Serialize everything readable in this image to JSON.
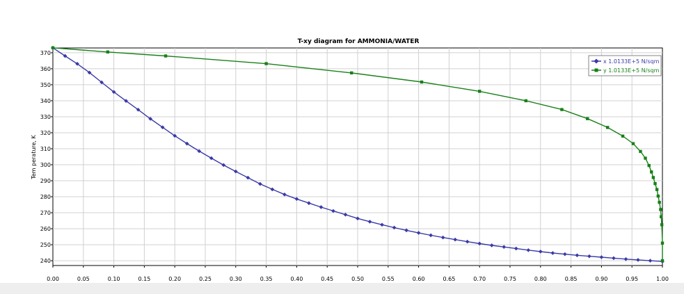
{
  "chart_data": {
    "type": "line",
    "title": "T-xy diagram for AMMONIA/WATER",
    "xlabel": "",
    "ylabel": "Tem perature, K",
    "xlim": [
      0,
      1
    ],
    "ylim": [
      237,
      373
    ],
    "x_ticks": [
      "0.00",
      "0.05",
      "0.10",
      "0.15",
      "0.20",
      "0.25",
      "0.30",
      "0.35",
      "0.40",
      "0.45",
      "0.50",
      "0.55",
      "0.60",
      "0.65",
      "0.70",
      "0.75",
      "0.80",
      "0.85",
      "0.90",
      "0.95",
      "1.00"
    ],
    "y_ticks": [
      "240",
      "250",
      "260",
      "270",
      "280",
      "290",
      "300",
      "310",
      "320",
      "330",
      "340",
      "350",
      "360",
      "370"
    ],
    "grid": true,
    "legend_position": "top-right",
    "series": [
      {
        "name": "x 1.0133E+5 N/sqm",
        "color": "#3a3aa8",
        "marker": "diamond",
        "x": [
          0,
          0.02,
          0.04,
          0.06,
          0.08,
          0.1,
          0.12,
          0.14,
          0.16,
          0.18,
          0.2,
          0.22,
          0.24,
          0.26,
          0.28,
          0.3,
          0.32,
          0.34,
          0.36,
          0.38,
          0.4,
          0.42,
          0.44,
          0.46,
          0.48,
          0.5,
          0.52,
          0.54,
          0.56,
          0.58,
          0.6,
          0.62,
          0.64,
          0.66,
          0.68,
          0.7,
          0.72,
          0.74,
          0.76,
          0.78,
          0.8,
          0.82,
          0.84,
          0.86,
          0.88,
          0.9,
          0.92,
          0.94,
          0.96,
          0.98,
          1.0
        ],
        "y": [
          373.1,
          368.0,
          363.1,
          357.6,
          351.5,
          345.5,
          339.9,
          334.4,
          328.7,
          323.4,
          318.1,
          313.2,
          308.5,
          304.1,
          299.8,
          295.8,
          291.9,
          288.0,
          284.6,
          281.4,
          278.6,
          276.0,
          273.5,
          271.1,
          268.8,
          266.4,
          264.4,
          262.5,
          260.7,
          259.0,
          257.4,
          255.9,
          254.5,
          253.2,
          251.9,
          250.7,
          249.6,
          248.6,
          247.6,
          246.6,
          245.7,
          244.8,
          244.1,
          243.4,
          242.8,
          242.2,
          241.6,
          241.0,
          240.5,
          240.0,
          239.5
        ]
      },
      {
        "name": "y 1.0133E+5 N/sqm",
        "color": "#188018",
        "marker": "square",
        "x": [
          0,
          0.09,
          0.185,
          0.35,
          0.49,
          0.605,
          0.7,
          0.776,
          0.835,
          0.877,
          0.91,
          0.935,
          0.952,
          0.964,
          0.972,
          0.978,
          0.982,
          0.985,
          0.988,
          0.991,
          0.993,
          0.995,
          0.997,
          0.998,
          0.999,
          1.0,
          1.0
        ],
        "y": [
          373.1,
          370.5,
          368.0,
          363.2,
          357.4,
          351.7,
          345.9,
          340.0,
          334.5,
          328.8,
          323.3,
          317.9,
          313.2,
          308.3,
          304.1,
          299.5,
          295.5,
          292.0,
          288.2,
          284.5,
          280.4,
          276.5,
          272.0,
          267.5,
          262.5,
          251.0,
          240.0
        ]
      }
    ]
  }
}
